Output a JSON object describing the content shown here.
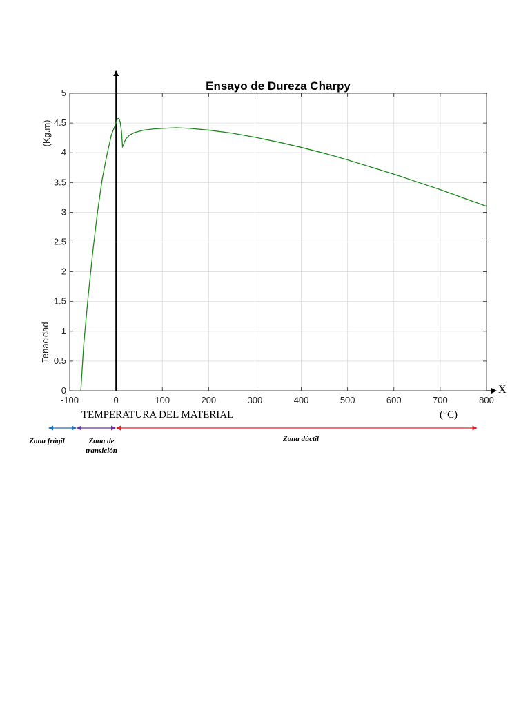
{
  "chart_data": {
    "type": "line",
    "title": "Ensayo de Dureza Charpy",
    "ylabel_top": "(Kg.m)",
    "ylabel_bottom": "Tenacidad",
    "xlabel": "TEMPERATURA DEL MATERIAL",
    "xunit": "(°C)",
    "x_axis_letter": "X",
    "xlim": [
      -100,
      800
    ],
    "ylim": [
      0,
      5
    ],
    "xticks": [
      "-100",
      "0",
      "100",
      "200",
      "300",
      "400",
      "500",
      "600",
      "700",
      "800"
    ],
    "yticks": [
      "0",
      "0.5",
      "1",
      "1.5",
      "2",
      "2.5",
      "3",
      "3.5",
      "4",
      "4.5",
      "5"
    ],
    "grid": true,
    "series": [
      {
        "color": "#1e8a1e",
        "x": [
          -76,
          -70,
          -60,
          -50,
          -40,
          -30,
          -20,
          -10,
          0,
          3,
          6,
          9,
          12,
          14,
          16,
          18,
          22,
          30,
          40,
          60,
          80,
          100,
          130,
          160,
          200,
          250,
          300,
          350,
          400,
          450,
          500,
          550,
          600,
          650,
          700,
          750,
          800
        ],
        "y": [
          0,
          0.75,
          1.6,
          2.35,
          3.0,
          3.55,
          3.95,
          4.3,
          4.5,
          4.57,
          4.58,
          4.52,
          4.35,
          4.1,
          4.13,
          4.18,
          4.24,
          4.3,
          4.34,
          4.38,
          4.4,
          4.41,
          4.42,
          4.41,
          4.38,
          4.33,
          4.26,
          4.18,
          4.09,
          3.99,
          3.88,
          3.76,
          3.64,
          3.51,
          3.38,
          3.24,
          3.1
        ]
      }
    ]
  },
  "zones": [
    {
      "label": "Zona frágil",
      "color": "#1f6fbf",
      "from": -150,
      "to": -85
    },
    {
      "label_line1": "Zona de",
      "label_line2": "transición",
      "color": "#6a2fa8",
      "from": -85,
      "to": 0
    },
    {
      "label": "Zona dúctil",
      "color": "#e02020",
      "from": 0,
      "to": 780
    }
  ]
}
